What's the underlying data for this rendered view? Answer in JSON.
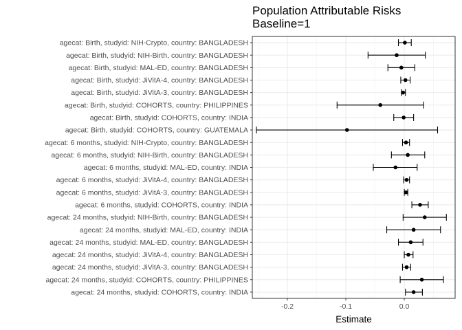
{
  "chart_data": {
    "type": "forest",
    "title": "Population Attributable Risks",
    "subtitle": "Baseline=1",
    "xlabel": "Estimate",
    "ylabel": "",
    "xlim": [
      -0.26,
      0.087
    ],
    "xticks": [
      -0.2,
      -0.1,
      0.0
    ],
    "xtick_labels": [
      "-0.2",
      "-0.1",
      "0.0"
    ],
    "grid": true,
    "rows": [
      {
        "label": "agecat: Birth, studyid: NIH-Crypto, country: BANGLADESH",
        "estimate": 0.001,
        "lower": -0.01,
        "upper": 0.012
      },
      {
        "label": "agecat: Birth, studyid: NIH-Birth, country: BANGLADESH",
        "estimate": -0.013,
        "lower": -0.062,
        "upper": 0.036
      },
      {
        "label": "agecat: Birth, studyid: MAL-ED, country: BANGLADESH",
        "estimate": -0.005,
        "lower": -0.028,
        "upper": 0.018
      },
      {
        "label": "agecat: Birth, studyid: JiVitA-4, country: BANGLADESH",
        "estimate": 0.002,
        "lower": -0.006,
        "upper": 0.01
      },
      {
        "label": "agecat: Birth, studyid: JiVitA-3, country: BANGLADESH",
        "estimate": -0.002,
        "lower": -0.005,
        "upper": 0.002
      },
      {
        "label": "agecat: Birth, studyid: COHORTS, country: PHILIPPINES",
        "estimate": -0.041,
        "lower": -0.115,
        "upper": 0.033
      },
      {
        "label": "agecat: Birth, studyid: COHORTS, country: INDIA",
        "estimate": -0.001,
        "lower": -0.018,
        "upper": 0.016
      },
      {
        "label": "agecat: Birth, studyid: COHORTS, country: GUATEMALA",
        "estimate": -0.098,
        "lower": -0.253,
        "upper": 0.057
      },
      {
        "label": "agecat: 6 months, studyid: NIH-Crypto, country: BANGLADESH",
        "estimate": 0.003,
        "lower": -0.003,
        "upper": 0.009
      },
      {
        "label": "agecat: 6 months, studyid: NIH-Birth, country: BANGLADESH",
        "estimate": 0.006,
        "lower": -0.022,
        "upper": 0.035
      },
      {
        "label": "agecat: 6 months, studyid: MAL-ED, country: INDIA",
        "estimate": -0.015,
        "lower": -0.053,
        "upper": 0.022
      },
      {
        "label": "agecat: 6 months, studyid: JiVitA-4, country: BANGLADESH",
        "estimate": 0.004,
        "lower": -0.001,
        "upper": 0.009
      },
      {
        "label": "agecat: 6 months, studyid: JiVitA-3, country: BANGLADESH",
        "estimate": 0.003,
        "lower": 0.0,
        "upper": 0.006
      },
      {
        "label": "agecat: 6 months, studyid: COHORTS, country: INDIA",
        "estimate": 0.027,
        "lower": 0.013,
        "upper": 0.041
      },
      {
        "label": "agecat: 24 months, studyid: NIH-Birth, country: BANGLADESH",
        "estimate": 0.035,
        "lower": -0.002,
        "upper": 0.072
      },
      {
        "label": "agecat: 24 months, studyid: MAL-ED, country: INDIA",
        "estimate": 0.016,
        "lower": -0.03,
        "upper": 0.062
      },
      {
        "label": "agecat: 24 months, studyid: MAL-ED, country: BANGLADESH",
        "estimate": 0.011,
        "lower": -0.01,
        "upper": 0.032
      },
      {
        "label": "agecat: 24 months, studyid: JiVitA-4, country: BANGLADESH",
        "estimate": 0.007,
        "lower": 0.0,
        "upper": 0.015
      },
      {
        "label": "agecat: 24 months, studyid: JiVitA-3, country: BANGLADESH",
        "estimate": 0.004,
        "lower": -0.003,
        "upper": 0.011
      },
      {
        "label": "agecat: 24 months, studyid: COHORTS, country: PHILIPPINES",
        "estimate": 0.03,
        "lower": -0.007,
        "upper": 0.067
      },
      {
        "label": "agecat: 24 months, studyid: COHORTS, country: INDIA",
        "estimate": 0.016,
        "lower": 0.002,
        "upper": 0.031
      }
    ]
  }
}
